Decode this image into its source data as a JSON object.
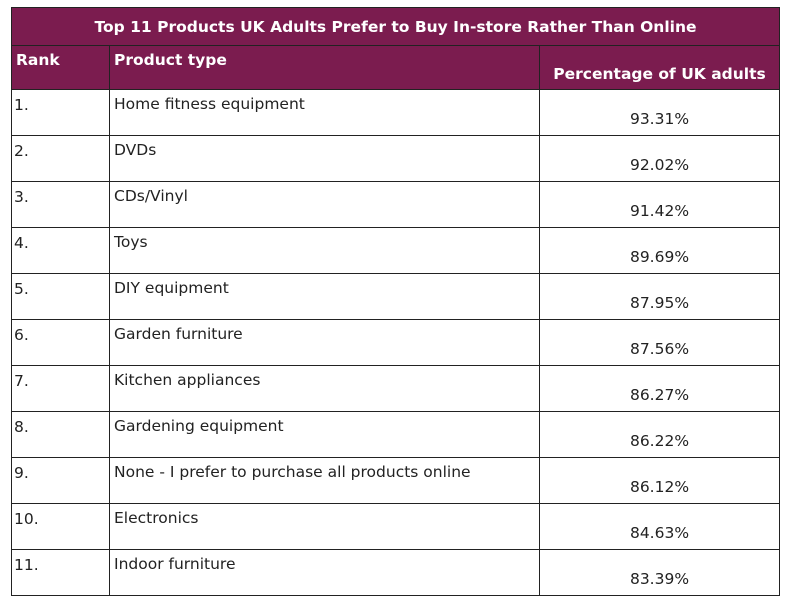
{
  "chart_data": {
    "type": "table",
    "title": "Top 11 Products UK Adults Prefer to Buy In-store Rather Than Online",
    "columns": [
      "Rank",
      "Product type",
      "Percentage of UK adults"
    ],
    "rows": [
      {
        "rank": "1.",
        "product": "Home fitness equipment",
        "percent": "93.31%"
      },
      {
        "rank": "2.",
        "product": "DVDs",
        "percent": "92.02%"
      },
      {
        "rank": "3.",
        "product": "CDs/Vinyl",
        "percent": "91.42%"
      },
      {
        "rank": "4.",
        "product": "Toys",
        "percent": "89.69%"
      },
      {
        "rank": "5.",
        "product": "DIY equipment",
        "percent": "87.95%"
      },
      {
        "rank": "6.",
        "product": "Garden furniture",
        "percent": "87.56%"
      },
      {
        "rank": "7.",
        "product": "Kitchen appliances",
        "percent": "86.27%"
      },
      {
        "rank": "8.",
        "product": "Gardening equipment",
        "percent": "86.22%"
      },
      {
        "rank": "9.",
        "product": "None - I prefer to purchase all products online",
        "percent": "86.12%"
      },
      {
        "rank": "10.",
        "product": "Electronics",
        "percent": "84.63%"
      },
      {
        "rank": "11.",
        "product": "Indoor furniture",
        "percent": "83.39%"
      }
    ],
    "header_color": "#7b1c4f"
  }
}
